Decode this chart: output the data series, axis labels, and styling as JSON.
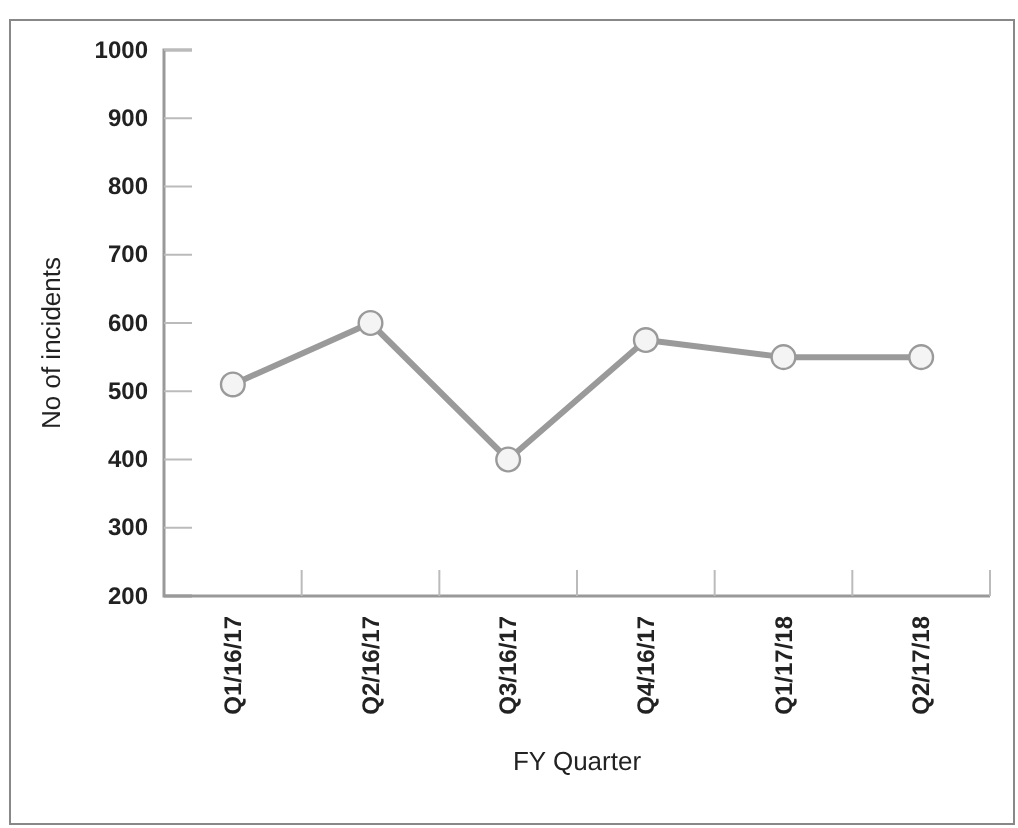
{
  "chart_data": {
    "type": "line",
    "xlabel": "FY Quarter",
    "ylabel": "No of incidents",
    "categories": [
      "Q1/16/17",
      "Q2/16/17",
      "Q3/16/17",
      "Q4/16/17",
      "Q1/17/18",
      "Q2/17/18"
    ],
    "series": [
      {
        "color": "#9a9a9a",
        "values": [
          510,
          600,
          400,
          575,
          550,
          550
        ]
      }
    ],
    "ylim": [
      200,
      1000
    ],
    "yticks": [
      200,
      300,
      400,
      500,
      600,
      700,
      800,
      900,
      1000
    ],
    "marker": "circle"
  }
}
